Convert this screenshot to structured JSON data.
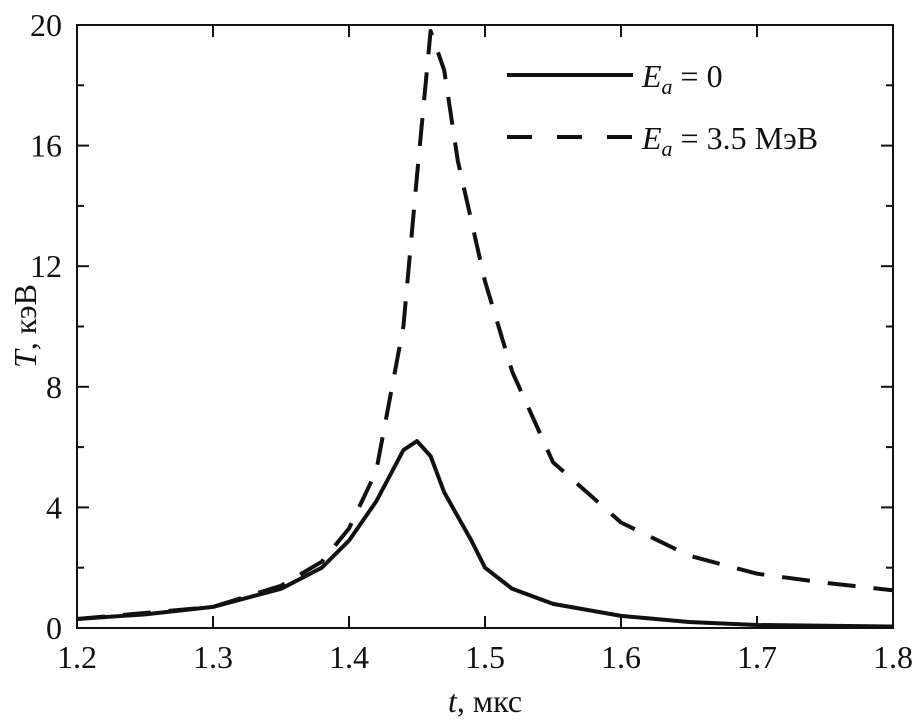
{
  "chart_data": {
    "type": "line",
    "xlabel": "t",
    "xlabel_unit": ", мкс",
    "ylabel": "T",
    "ylabel_unit": ", кэВ",
    "xlim": [
      1.2,
      1.8
    ],
    "ylim": [
      0,
      20
    ],
    "xticks": [
      "1.2",
      "1.3",
      "1.4",
      "1.5",
      "1.6",
      "1.7",
      "1.8"
    ],
    "yticks": [
      "0",
      "4",
      "8",
      "12",
      "16",
      "20"
    ],
    "grid": false,
    "legend_position": "top-right",
    "series": [
      {
        "name_main": "E",
        "name_sub": "a",
        "name_rest": " = 0",
        "style": "solid",
        "color": "#111111",
        "x": [
          1.2,
          1.25,
          1.3,
          1.35,
          1.38,
          1.4,
          1.42,
          1.44,
          1.45,
          1.46,
          1.47,
          1.49,
          1.5,
          1.52,
          1.55,
          1.6,
          1.65,
          1.7,
          1.8
        ],
        "y": [
          0.3,
          0.45,
          0.7,
          1.3,
          2.0,
          2.9,
          4.2,
          5.9,
          6.2,
          5.7,
          4.5,
          2.9,
          2.0,
          1.3,
          0.8,
          0.4,
          0.2,
          0.1,
          0.05
        ]
      },
      {
        "name_main": "E",
        "name_sub": "a",
        "name_rest": " = 3.5 МэВ",
        "style": "dashed",
        "color": "#111111",
        "x": [
          1.2,
          1.3,
          1.35,
          1.38,
          1.4,
          1.42,
          1.44,
          1.45,
          1.46,
          1.47,
          1.48,
          1.5,
          1.52,
          1.55,
          1.6,
          1.65,
          1.7,
          1.75,
          1.8
        ],
        "y": [
          0.3,
          0.7,
          1.4,
          2.2,
          3.3,
          5.2,
          10,
          15,
          19.8,
          18.5,
          15.5,
          11.5,
          8.5,
          5.5,
          3.5,
          2.4,
          1.8,
          1.5,
          1.25
        ]
      }
    ]
  }
}
